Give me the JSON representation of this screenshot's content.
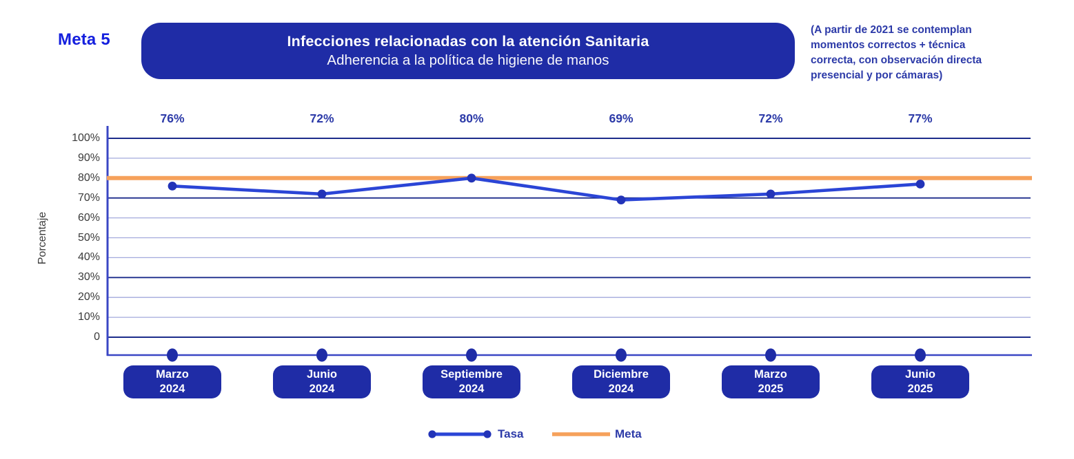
{
  "page": {
    "meta_label": "Meta 5"
  },
  "title": {
    "line1": "Infecciones relacionadas con la atención Sanitaria",
    "line2": "Adherencia a la política de higiene de manos"
  },
  "annotation": {
    "lines": [
      "(A partir de 2021 se contemplan",
      "momentos correctos + técnica",
      "correcta, con observación directa",
      "presencial y por cámaras)"
    ]
  },
  "chart_data": {
    "type": "line",
    "title": "Infecciones relacionadas con la atención Sanitaria — Adherencia a la política de higiene de manos",
    "categories": [
      "Marzo 2024",
      "Junio 2024",
      "Septiembre 2024",
      "Diciembre 2024",
      "Marzo 2025",
      "Junio 2025"
    ],
    "category_lines": [
      [
        "Marzo",
        "2024"
      ],
      [
        "Junio",
        "2024"
      ],
      [
        "Septiembre",
        "2024"
      ],
      [
        "Diciembre",
        "2024"
      ],
      [
        "Marzo",
        "2025"
      ],
      [
        "Junio",
        "2025"
      ]
    ],
    "series": [
      {
        "name": "Tasa",
        "values": [
          76,
          72,
          80,
          69,
          72,
          77
        ],
        "color": "#2B45D6"
      }
    ],
    "data_labels": [
      "76%",
      "72%",
      "80%",
      "69%",
      "72%",
      "77%"
    ],
    "target": {
      "name": "Meta",
      "value": 80,
      "color": "#F6A15B"
    },
    "xlabel": "",
    "ylabel": "Porcentaje",
    "ylim": [
      0,
      100
    ],
    "y_ticks": [
      "100%",
      "90%",
      "80%",
      "70%",
      "60%",
      "50%",
      "40%",
      "30%",
      "20%",
      "10%",
      "0"
    ],
    "grid": "horizontal",
    "legend_position": "bottom"
  },
  "colors": {
    "indigo_box": "#1F2CA6",
    "series_blue": "#2B45D6",
    "dot_blue": "#2233B8",
    "target_orange": "#F6A15B",
    "bright_blue": "#1520DE",
    "label_blue": "#2C3AA8",
    "grid_dark": "#1B2B8A",
    "grid_light": "#A3A9DC",
    "axis_blue": "#3A46C4"
  }
}
